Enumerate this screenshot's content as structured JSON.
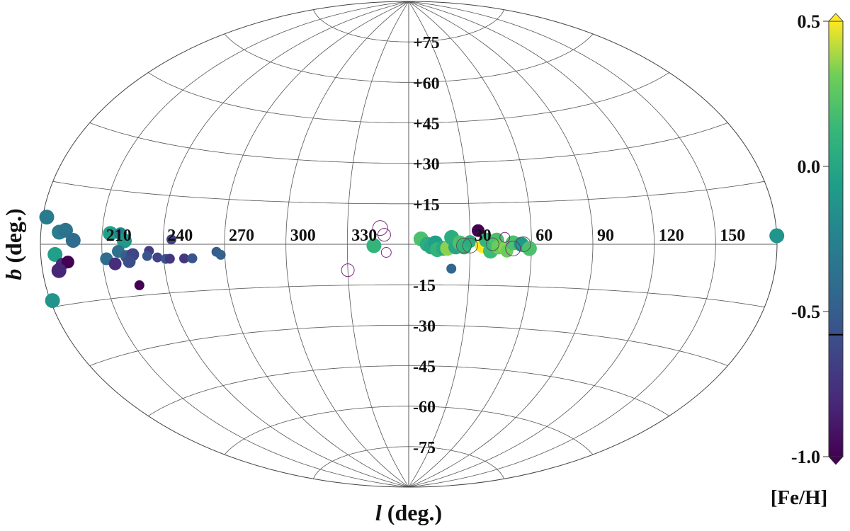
{
  "chart_data": {
    "type": "scatter",
    "projection": "aitoff",
    "xlabel_var": "l",
    "xlabel_unit": " (deg.)",
    "ylabel_var": "b",
    "ylabel_unit": " (deg.)",
    "x_tick_labels": [
      "210",
      "240",
      "270",
      "300",
      "330",
      "30",
      "60",
      "90",
      "120",
      "150"
    ],
    "x_tick_values": [
      210,
      240,
      270,
      300,
      330,
      30,
      60,
      90,
      120,
      150
    ],
    "y_tick_labels": [
      "+75",
      "+60",
      "+45",
      "+30",
      "+15",
      "-15",
      "-30",
      "-45",
      "-60",
      "-75"
    ],
    "y_tick_values": [
      75,
      60,
      45,
      30,
      15,
      -15,
      -30,
      -45,
      -60,
      -75
    ],
    "grid": true,
    "colorbar": {
      "label": "[Fe/H]",
      "min": -1.0,
      "max": 0.5,
      "colormap": "viridis",
      "tick_labels": [
        "0.5",
        "0.0",
        "-0.5",
        "-1.0"
      ],
      "tick_values": [
        0.5,
        0.0,
        -0.5,
        -1.0
      ],
      "marker_value": -0.58,
      "extend": "both"
    },
    "series": [
      {
        "kind": "filled",
        "points": [
          {
            "l": 182,
            "b": 6.5,
            "feh": -0.3,
            "size": "large"
          },
          {
            "l": 180,
            "b": 2,
            "feh": -0.12,
            "size": "large"
          },
          {
            "l": 189,
            "b": 3,
            "feh": -0.3,
            "size": "large"
          },
          {
            "l": 192,
            "b": 3.5,
            "feh": -0.35,
            "size": "large"
          },
          {
            "l": 196,
            "b": 1,
            "feh": -0.4,
            "size": "large"
          },
          {
            "l": 187,
            "b": -2.5,
            "feh": -0.05,
            "size": "large"
          },
          {
            "l": 190,
            "b": -5,
            "feh": -0.8,
            "size": "medium"
          },
          {
            "l": 193,
            "b": -4.5,
            "feh": -1.0,
            "size": "medium"
          },
          {
            "l": 188,
            "b": -6.5,
            "feh": -0.82,
            "size": "large"
          },
          {
            "l": 181,
            "b": -13.5,
            "feh": -0.12,
            "size": "large"
          },
          {
            "l": 214,
            "b": 3,
            "feh": -0.05,
            "size": "large"
          },
          {
            "l": 219,
            "b": 3,
            "feh": -0.25,
            "size": "medium"
          },
          {
            "l": 221,
            "b": 1,
            "feh": -0.1,
            "size": "large"
          },
          {
            "l": 212,
            "b": -4,
            "feh": -0.4,
            "size": "medium"
          },
          {
            "l": 218,
            "b": -2,
            "feh": -0.38,
            "size": "medium"
          },
          {
            "l": 222,
            "b": -3.5,
            "feh": -0.5,
            "size": "medium"
          },
          {
            "l": 216,
            "b": -5.5,
            "feh": -0.78,
            "size": "medium"
          },
          {
            "l": 225,
            "b": -3,
            "feh": -0.65,
            "size": "medium"
          },
          {
            "l": 223,
            "b": -5,
            "feh": -0.6,
            "size": "medium"
          },
          {
            "l": 226,
            "b": -12,
            "feh": -1.0,
            "size": "small"
          },
          {
            "l": 233,
            "b": -2,
            "feh": -0.7,
            "size": "small"
          },
          {
            "l": 232,
            "b": -3.5,
            "feh": -0.55,
            "size": "small"
          },
          {
            "l": 237,
            "b": -4,
            "feh": -0.65,
            "size": "small"
          },
          {
            "l": 241,
            "b": -4.5,
            "feh": -0.55,
            "size": "small"
          },
          {
            "l": 243,
            "b": -4.5,
            "feh": -0.72,
            "size": "small"
          },
          {
            "l": 244,
            "b": 1.5,
            "feh": -0.68,
            "size": "small"
          },
          {
            "l": 250,
            "b": -4.5,
            "feh": -0.72,
            "size": "small"
          },
          {
            "l": 254,
            "b": -4.5,
            "feh": -0.55,
            "size": "small"
          },
          {
            "l": 266,
            "b": -2.5,
            "feh": -0.5,
            "size": "small"
          },
          {
            "l": 268,
            "b": -3.5,
            "feh": -0.48,
            "size": "small"
          },
          {
            "l": 343,
            "b": -0.5,
            "feh": 0.1,
            "size": "large"
          },
          {
            "l": 6,
            "b": 2,
            "feh": 0.2,
            "size": "large"
          },
          {
            "l": 9,
            "b": 0,
            "feh": 0.05,
            "size": "large"
          },
          {
            "l": 11,
            "b": -1,
            "feh": 0.0,
            "size": "large"
          },
          {
            "l": 13,
            "b": 0.5,
            "feh": -0.05,
            "size": "large"
          },
          {
            "l": 14,
            "b": -2,
            "feh": 0.1,
            "size": "large"
          },
          {
            "l": 17,
            "b": -1.5,
            "feh": 0.02,
            "size": "large"
          },
          {
            "l": 19,
            "b": -1.5,
            "feh": 0.35,
            "size": "large"
          },
          {
            "l": 21,
            "b": 2.5,
            "feh": 0.05,
            "size": "large"
          },
          {
            "l": 23,
            "b": -1,
            "feh": 0.0,
            "size": "large"
          },
          {
            "l": 25,
            "b": 0.5,
            "feh": 0.2,
            "size": "large"
          },
          {
            "l": 27,
            "b": -1,
            "feh": 0.1,
            "size": "large"
          },
          {
            "l": 30,
            "b": 1,
            "feh": 0.05,
            "size": "medium"
          },
          {
            "l": 34,
            "b": 5,
            "feh": -1.0,
            "size": "medium"
          },
          {
            "l": 36,
            "b": -0.5,
            "feh": 0.5,
            "size": "large"
          },
          {
            "l": 38,
            "b": 1.5,
            "feh": 0.1,
            "size": "large"
          },
          {
            "l": 40,
            "b": -2.5,
            "feh": 0.15,
            "size": "large"
          },
          {
            "l": 43,
            "b": 1.5,
            "feh": 0.2,
            "size": "large"
          },
          {
            "l": 44,
            "b": -1,
            "feh": 0.3,
            "size": "large"
          },
          {
            "l": 47,
            "b": -1.5,
            "feh": 0.35,
            "size": "medium"
          },
          {
            "l": 48,
            "b": -2.5,
            "feh": 0.3,
            "size": "medium"
          },
          {
            "l": 51,
            "b": 0.5,
            "feh": 0.2,
            "size": "large"
          },
          {
            "l": 55,
            "b": 0,
            "feh": -0.1,
            "size": "large"
          },
          {
            "l": 59,
            "b": -1.5,
            "feh": 0.2,
            "size": "large"
          },
          {
            "l": 21,
            "b": -9,
            "feh": -0.45,
            "size": "small"
          }
        ]
      },
      {
        "kind": "open",
        "points": [
          {
            "l": 346,
            "b": 6,
            "ring": "purple",
            "size": "large"
          },
          {
            "l": 348,
            "b": 3.5,
            "ring": "purple",
            "size": "medium"
          },
          {
            "l": 349,
            "b": -3,
            "ring": "purple",
            "size": "small"
          },
          {
            "l": 330,
            "b": -9.5,
            "ring": "purple",
            "size": "medium"
          },
          {
            "l": 27,
            "b": -0.5,
            "ring": "gray",
            "size": "large"
          },
          {
            "l": 30,
            "b": -0.5,
            "ring": "gray",
            "size": "large"
          },
          {
            "l": 41,
            "b": 0,
            "ring": "gray",
            "size": "medium"
          },
          {
            "l": 47,
            "b": 2.5,
            "ring": "purple",
            "size": "small"
          },
          {
            "l": 51,
            "b": -1.5,
            "ring": "purple",
            "size": "large"
          },
          {
            "l": 56,
            "b": 0,
            "ring": "gray",
            "size": "large"
          }
        ]
      }
    ]
  }
}
